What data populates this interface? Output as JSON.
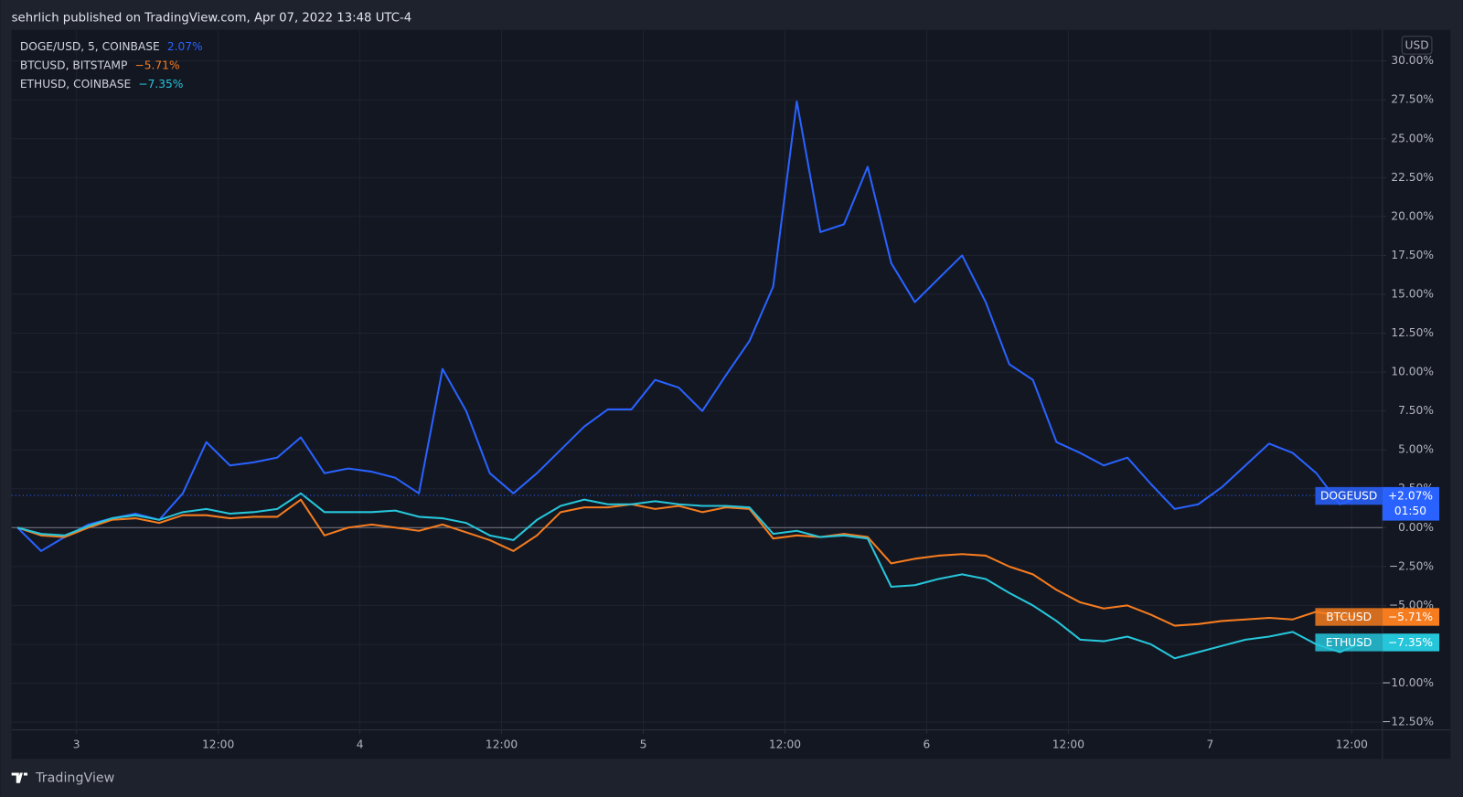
{
  "header": "sehrlich published on TradingView.com, Apr 07, 2022 13:48 UTC-4",
  "footer": "TradingView",
  "chart_data": {
    "type": "line",
    "y_unit": "USD",
    "x": [
      -5,
      -3,
      -1,
      1,
      3,
      5,
      7,
      9,
      11,
      13,
      15,
      17,
      19,
      21,
      23,
      25,
      27,
      29,
      31,
      33,
      35,
      37,
      39,
      41,
      43,
      45,
      47,
      49,
      51,
      53,
      55,
      57,
      59,
      61,
      63,
      65,
      67,
      69,
      71,
      73,
      75,
      77,
      79,
      81,
      83,
      85,
      87,
      89,
      91,
      93,
      95,
      97,
      99,
      101,
      103,
      105,
      107,
      109
    ],
    "xlim": [
      -5.5,
      110.6
    ],
    "xticks": [
      {
        "value": 0,
        "label": "3"
      },
      {
        "value": 12,
        "label": "12:00"
      },
      {
        "value": 24,
        "label": "4"
      },
      {
        "value": 36,
        "label": "12:00"
      },
      {
        "value": 48,
        "label": "5"
      },
      {
        "value": 60,
        "label": "12:00"
      },
      {
        "value": 72,
        "label": "6"
      },
      {
        "value": 84,
        "label": "12:00"
      },
      {
        "value": 96,
        "label": "7"
      },
      {
        "value": 108,
        "label": "12:00"
      }
    ],
    "ylim": [
      -13,
      32
    ],
    "yticks": [
      {
        "value": -12.5,
        "label": "−12.50%"
      },
      {
        "value": -10,
        "label": "−10.00%"
      },
      {
        "value": -7.5,
        "label": "−7.50%"
      },
      {
        "value": -5,
        "label": "−5.00%"
      },
      {
        "value": -2.5,
        "label": "−2.50%"
      },
      {
        "value": 0,
        "label": "0.00%"
      },
      {
        "value": 2.5,
        "label": "2.50%"
      },
      {
        "value": 5,
        "label": "5.00%"
      },
      {
        "value": 7.5,
        "label": "7.50%"
      },
      {
        "value": 10,
        "label": "10.00%"
      },
      {
        "value": 12.5,
        "label": "12.50%"
      },
      {
        "value": 15,
        "label": "15.00%"
      },
      {
        "value": 17.5,
        "label": "17.50%"
      },
      {
        "value": 20,
        "label": "20.00%"
      },
      {
        "value": 22.5,
        "label": "22.50%"
      },
      {
        "value": 25,
        "label": "25.00%"
      },
      {
        "value": 27.5,
        "label": "27.50%"
      },
      {
        "value": 30,
        "label": "30.00%"
      }
    ],
    "grid": true,
    "series": [
      {
        "name": "DOGEUSD",
        "legend": "DOGE/USD, 5, COINBASE",
        "change_label": "2.07%",
        "tag_label": "+2.07%",
        "countdown": "01:50",
        "color": "#2962ff",
        "values": [
          0,
          -1.5,
          -0.6,
          0.2,
          0.6,
          0.9,
          0.5,
          2.2,
          5.5,
          4,
          4.2,
          4.5,
          5.8,
          3.5,
          3.8,
          3.6,
          3.2,
          2.2,
          10.2,
          7.5,
          3.5,
          2.2,
          3.5,
          5,
          6.5,
          7.6,
          7.6,
          9.5,
          9,
          7.5,
          9.8,
          12,
          15.5,
          27.4,
          19,
          19.5,
          23.2,
          17,
          14.5,
          16,
          17.5,
          14.5,
          10.5,
          9.5,
          5.5,
          4.8,
          4,
          4.5,
          2.8,
          1.2,
          1.5,
          2.6,
          4,
          5.4,
          4.8,
          3.5,
          1.5,
          2.07
        ]
      },
      {
        "name": "BTCUSD",
        "legend": "BTCUSD, BITSTAMP",
        "change_label": "−5.71%",
        "tag_label": "−5.71%",
        "color": "#f57c1f",
        "values": [
          0,
          -0.5,
          -0.6,
          0,
          0.5,
          0.6,
          0.3,
          0.8,
          0.8,
          0.6,
          0.7,
          0.7,
          1.8,
          -0.5,
          0,
          0.2,
          0,
          -0.2,
          0.2,
          -0.3,
          -0.8,
          -1.5,
          -0.5,
          1,
          1.3,
          1.3,
          1.5,
          1.2,
          1.4,
          1,
          1.3,
          1.2,
          -0.7,
          -0.5,
          -0.6,
          -0.4,
          -0.6,
          -2.3,
          -2,
          -1.8,
          -1.7,
          -1.8,
          -2.5,
          -3,
          -4,
          -4.8,
          -5.2,
          -5,
          -5.6,
          -6.3,
          -6.2,
          -6,
          -5.9,
          -5.8,
          -5.9,
          -5.4,
          -5.7,
          -5.71
        ]
      },
      {
        "name": "ETHUSD",
        "legend": "ETHUSD, COINBASE",
        "change_label": "−7.35%",
        "tag_label": "−7.35%",
        "color": "#26c6da",
        "values": [
          0,
          -0.4,
          -0.5,
          0.1,
          0.6,
          0.8,
          0.5,
          1,
          1.2,
          0.9,
          1,
          1.2,
          2.2,
          1,
          1,
          1,
          1.1,
          0.7,
          0.6,
          0.3,
          -0.5,
          -0.8,
          0.5,
          1.4,
          1.8,
          1.5,
          1.5,
          1.7,
          1.5,
          1.4,
          1.4,
          1.3,
          -0.4,
          -0.2,
          -0.6,
          -0.5,
          -0.7,
          -3.8,
          -3.7,
          -3.3,
          -3,
          -3.3,
          -4.2,
          -5,
          -6,
          -7.2,
          -7.3,
          -7,
          -7.5,
          -8.4,
          -8,
          -7.6,
          -7.2,
          -7,
          -6.7,
          -7.5,
          -8,
          -7.35
        ]
      }
    ]
  }
}
